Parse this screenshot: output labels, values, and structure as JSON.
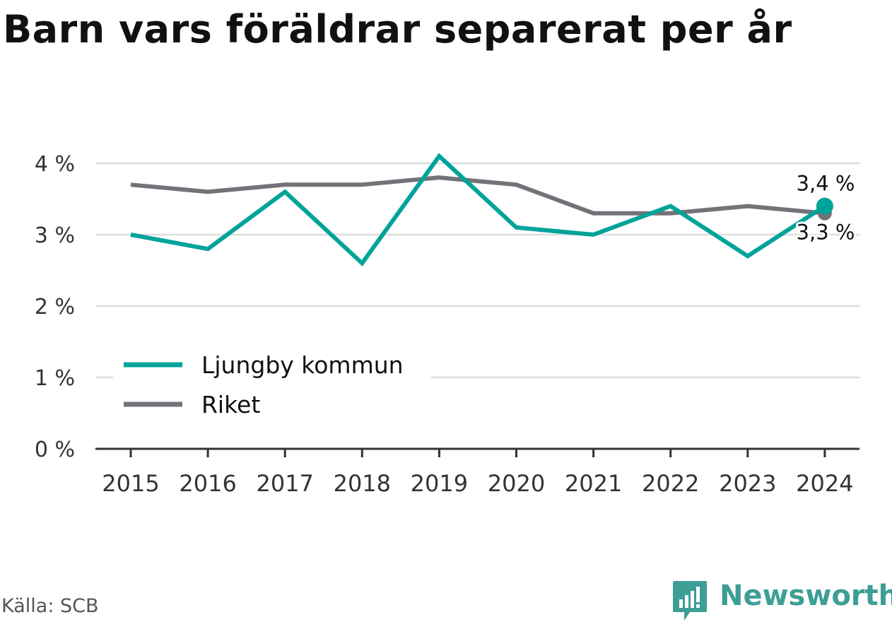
{
  "header": {
    "title": "Barn vars föräldrar separerat per år"
  },
  "footer": {
    "source": "Källa: SCB",
    "brand": "Newsworthy"
  },
  "colors": {
    "ljungby": "#00a39a",
    "riket": "#737278",
    "grid": "#dddddd",
    "axis": "#333333",
    "brand": "#3d9e95"
  },
  "icons": {
    "brand_logo": "bar-chart-speech-bubble-icon"
  },
  "chart_data": {
    "type": "line",
    "title": "Barn vars föräldrar separerat per år",
    "xlabel": "",
    "ylabel": "",
    "x": [
      "2015",
      "2016",
      "2017",
      "2018",
      "2019",
      "2020",
      "2021",
      "2022",
      "2023",
      "2024"
    ],
    "ylim": [
      0,
      4
    ],
    "yticks": [
      0,
      1,
      2,
      3,
      4
    ],
    "ytick_labels": [
      "0 %",
      "1 %",
      "2 %",
      "3 %",
      "4 %"
    ],
    "grid": true,
    "legend": "bottom-left",
    "series": [
      {
        "name": "Ljungby kommun",
        "color": "#00a39a",
        "values": [
          3.0,
          2.8,
          3.6,
          2.6,
          4.1,
          3.1,
          3.0,
          3.4,
          2.7,
          3.4
        ]
      },
      {
        "name": "Riket",
        "color": "#737278",
        "values": [
          3.7,
          3.6,
          3.7,
          3.7,
          3.8,
          3.7,
          3.3,
          3.3,
          3.4,
          3.3
        ]
      }
    ],
    "end_labels": [
      "3,4 %",
      "3,3 %"
    ]
  }
}
